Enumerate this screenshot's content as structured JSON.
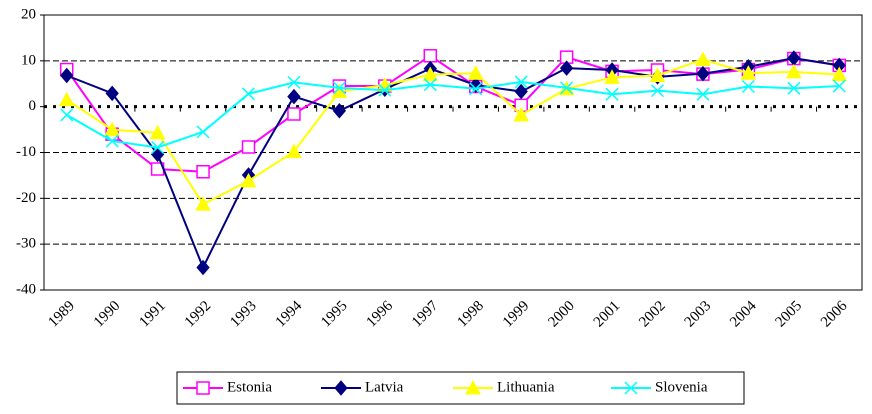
{
  "chart_data": {
    "type": "line",
    "categories": [
      "1989",
      "1990",
      "1991",
      "1992",
      "1993",
      "1994",
      "1995",
      "1996",
      "1997",
      "1998",
      "1999",
      "2000",
      "2001",
      "2002",
      "2003",
      "2004",
      "2005",
      "2006"
    ],
    "series": [
      {
        "name": "Estonia",
        "color": "#ff00ff",
        "marker": "square",
        "values": [
          8.1,
          -6.0,
          -13.6,
          -14.2,
          -8.8,
          -1.6,
          4.5,
          4.5,
          11.1,
          4.4,
          0.3,
          10.8,
          7.7,
          8.0,
          7.1,
          8.1,
          10.5,
          9.0
        ]
      },
      {
        "name": "Latvia",
        "color": "#000080",
        "marker": "diamond",
        "values": [
          6.8,
          2.9,
          -10.4,
          -35.1,
          -14.9,
          2.2,
          -0.9,
          3.8,
          8.3,
          4.7,
          3.3,
          8.4,
          8.0,
          6.5,
          7.2,
          8.7,
          10.6,
          9.0
        ]
      },
      {
        "name": "Lithuania",
        "color": "#ffff00",
        "marker": "triangle",
        "values": [
          1.5,
          -5.0,
          -5.7,
          -21.3,
          -16.2,
          -9.8,
          3.3,
          4.7,
          7.0,
          7.3,
          -1.8,
          3.9,
          6.4,
          6.8,
          10.3,
          7.3,
          7.6,
          7.0
        ]
      },
      {
        "name": "Slovenia",
        "color": "#00ffff",
        "marker": "x",
        "values": [
          -1.8,
          -7.5,
          -8.9,
          -5.5,
          2.8,
          5.3,
          4.1,
          3.6,
          4.8,
          3.9,
          5.4,
          4.1,
          2.7,
          3.5,
          2.7,
          4.4,
          4.0,
          4.5
        ]
      }
    ],
    "ylim": [
      -40,
      20
    ],
    "yticks": [
      -40,
      -30,
      -20,
      -10,
      0,
      10,
      20
    ],
    "grid": true,
    "legend": "bottom"
  }
}
